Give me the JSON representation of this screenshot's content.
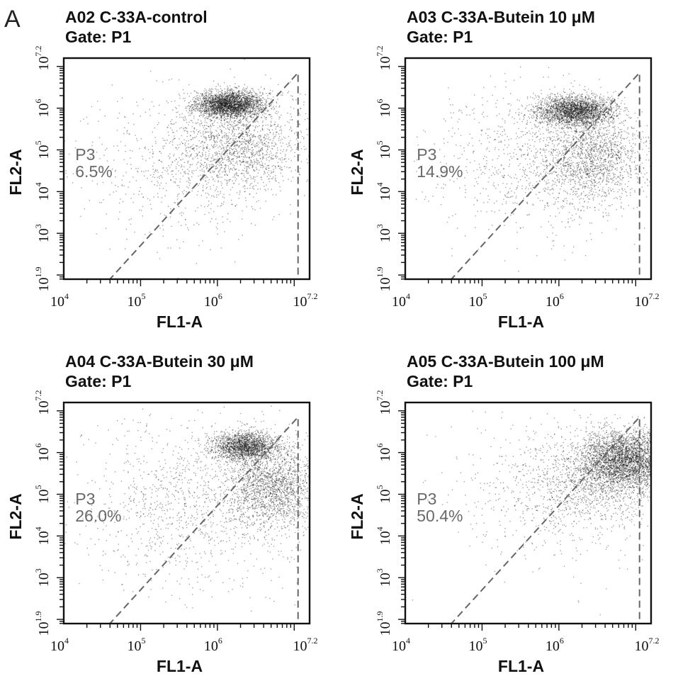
{
  "figure_label": "A",
  "chart_data": [
    {
      "type": "scatter",
      "sample": "A02 C-33A-control",
      "gate_line": "Gate: P1",
      "xlabel": "FL1-A",
      "ylabel": "FL2-A",
      "xlim": [
        4,
        7.2
      ],
      "ylim": [
        1.9,
        7.2
      ],
      "scale": "log10",
      "x_ticks": [
        "4",
        "5",
        "6",
        "7.2"
      ],
      "y_ticks": [
        "1.9",
        "3",
        "4",
        "5",
        "6",
        "7.2"
      ],
      "gate": {
        "name": "P3",
        "percent": "6.5%",
        "polygon_log10": [
          [
            4.6,
            1.9
          ],
          [
            7.05,
            1.9
          ],
          [
            7.05,
            6.85
          ]
        ]
      },
      "populations": [
        {
          "center_log10": [
            6.15,
            6.1
          ],
          "spread_log10": [
            0.22,
            0.16
          ],
          "weight": 0.55
        },
        {
          "center_log10": [
            6.3,
            5.1
          ],
          "spread_log10": [
            0.45,
            0.55
          ],
          "weight": 0.3
        },
        {
          "center_log10": [
            5.6,
            4.6
          ],
          "spread_log10": [
            0.7,
            0.9
          ],
          "weight": 0.15
        }
      ]
    },
    {
      "type": "scatter",
      "sample": "A03 C-33A-Butein 10 μM",
      "gate_line": "Gate: P1",
      "xlabel": "FL1-A",
      "ylabel": "FL2-A",
      "xlim": [
        4,
        7.2
      ],
      "ylim": [
        1.9,
        7.2
      ],
      "scale": "log10",
      "x_ticks": [
        "4",
        "5",
        "6",
        "7.2"
      ],
      "y_ticks": [
        "1.9",
        "3",
        "4",
        "5",
        "6",
        "7.2"
      ],
      "gate": {
        "name": "P3",
        "percent": "14.9%",
        "polygon_log10": [
          [
            4.6,
            1.9
          ],
          [
            7.05,
            1.9
          ],
          [
            7.05,
            6.85
          ]
        ]
      },
      "populations": [
        {
          "center_log10": [
            6.2,
            5.95
          ],
          "spread_log10": [
            0.25,
            0.18
          ],
          "weight": 0.5
        },
        {
          "center_log10": [
            6.4,
            4.8
          ],
          "spread_log10": [
            0.35,
            0.55
          ],
          "weight": 0.32
        },
        {
          "center_log10": [
            5.7,
            4.8
          ],
          "spread_log10": [
            0.7,
            0.9
          ],
          "weight": 0.18
        }
      ]
    },
    {
      "type": "scatter",
      "sample": "A04 C-33A-Butein 30 μM",
      "gate_line": "Gate: P1",
      "xlabel": "FL1-A",
      "ylabel": "FL2-A",
      "xlim": [
        4,
        7.2
      ],
      "ylim": [
        1.9,
        7.2
      ],
      "scale": "log10",
      "x_ticks": [
        "4",
        "5",
        "6",
        "7.2"
      ],
      "y_ticks": [
        "1.9",
        "3",
        "4",
        "5",
        "6",
        "7.2"
      ],
      "gate": {
        "name": "P3",
        "percent": "26.0%",
        "polygon_log10": [
          [
            4.6,
            1.9
          ],
          [
            7.05,
            1.9
          ],
          [
            7.05,
            6.85
          ]
        ]
      },
      "populations": [
        {
          "center_log10": [
            6.35,
            6.15
          ],
          "spread_log10": [
            0.22,
            0.18
          ],
          "weight": 0.38
        },
        {
          "center_log10": [
            6.7,
            5.2
          ],
          "spread_log10": [
            0.3,
            0.5
          ],
          "weight": 0.37
        },
        {
          "center_log10": [
            5.7,
            4.8
          ],
          "spread_log10": [
            0.75,
            1.0
          ],
          "weight": 0.25
        }
      ]
    },
    {
      "type": "scatter",
      "sample": "A05 C-33A-Butein 100 μM",
      "gate_line": "Gate: P1",
      "xlabel": "FL1-A",
      "ylabel": "FL2-A",
      "xlim": [
        4,
        7.2
      ],
      "ylim": [
        1.9,
        7.2
      ],
      "scale": "log10",
      "x_ticks": [
        "4",
        "5",
        "6",
        "7.2"
      ],
      "y_ticks": [
        "1.9",
        "3",
        "4",
        "5",
        "6",
        "7.2"
      ],
      "gate": {
        "name": "P3",
        "percent": "50.4%",
        "polygon_log10": [
          [
            4.6,
            1.9
          ],
          [
            7.05,
            1.9
          ],
          [
            7.05,
            6.85
          ]
        ]
      },
      "populations": [
        {
          "center_log10": [
            6.85,
            5.85
          ],
          "spread_log10": [
            0.28,
            0.35
          ],
          "weight": 0.62
        },
        {
          "center_log10": [
            6.5,
            5.4
          ],
          "spread_log10": [
            0.5,
            0.55
          ],
          "weight": 0.28
        },
        {
          "center_log10": [
            5.8,
            4.9
          ],
          "spread_log10": [
            0.7,
            0.9
          ],
          "weight": 0.1
        }
      ]
    }
  ]
}
